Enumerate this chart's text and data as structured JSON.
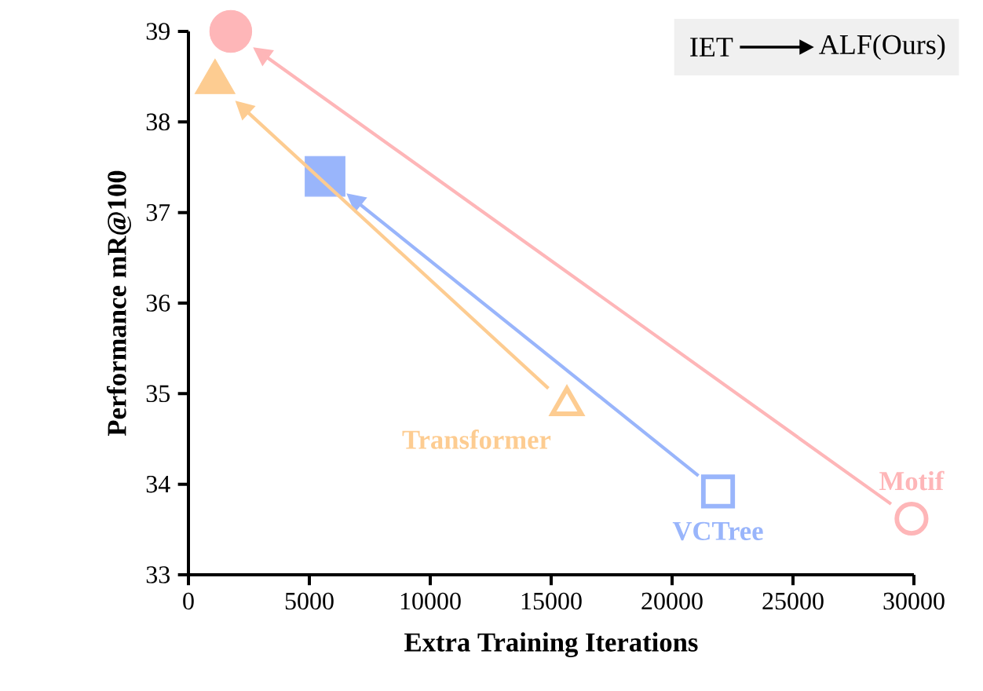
{
  "chart_data": {
    "type": "scatter",
    "xlabel": "Extra Training Iterations",
    "ylabel": "Performance mR@100",
    "xlim": [
      0,
      30000
    ],
    "ylim": [
      33,
      39
    ],
    "xticks": [
      0,
      5000,
      10000,
      15000,
      20000,
      25000,
      30000
    ],
    "yticks": [
      33,
      34,
      35,
      36,
      37,
      38,
      39
    ],
    "annotations": [
      "IET",
      "ALF(Ours)"
    ],
    "series": [
      {
        "name": "Motif",
        "color": "#feb6b8",
        "marker": "circle",
        "x": [
          29900,
          1750
        ],
        "values": [
          33.62,
          39.0
        ]
      },
      {
        "name": "VCTree",
        "color": "#99b5fb",
        "marker": "square",
        "x": [
          21900,
          5650
        ],
        "values": [
          33.92,
          37.4
        ]
      },
      {
        "name": "Transformer",
        "color": "#fdcc91",
        "marker": "triangle",
        "x": [
          15650,
          1100
        ],
        "values": [
          34.87,
          38.44
        ]
      }
    ]
  }
}
